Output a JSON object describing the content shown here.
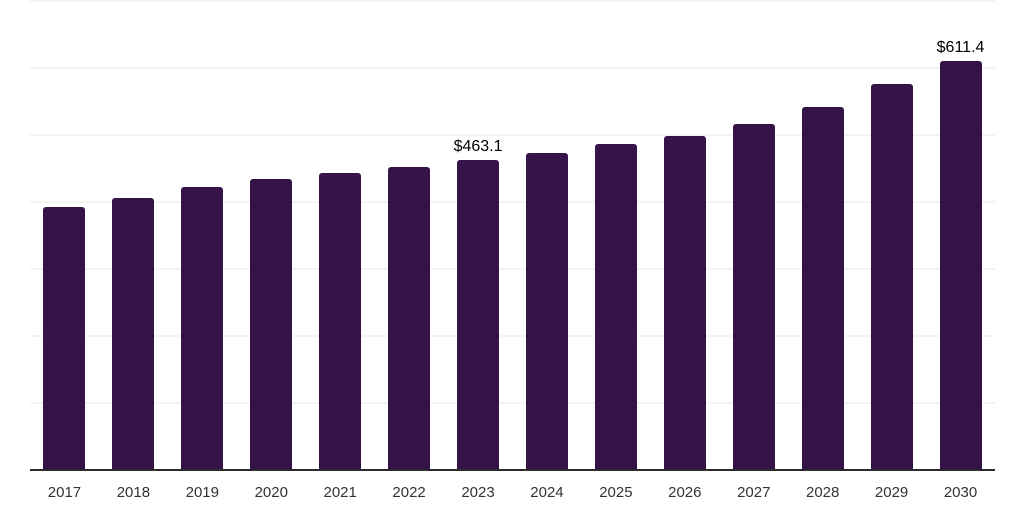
{
  "chart_data": {
    "type": "bar",
    "title": "",
    "categories": [
      "2017",
      "2018",
      "2019",
      "2020",
      "2021",
      "2022",
      "2023",
      "2024",
      "2025",
      "2026",
      "2027",
      "2028",
      "2029",
      "2030"
    ],
    "values": [
      393,
      406,
      423,
      435,
      443,
      453,
      463.1,
      474,
      487,
      499,
      517,
      542,
      577,
      611.4
    ],
    "data_labels": [
      {
        "category": "2023",
        "text": "$463.1"
      },
      {
        "category": "2030",
        "text": "$611.4"
      }
    ],
    "xlabel": "",
    "ylabel": "",
    "ylim": [
      0,
      700
    ],
    "gridline_interval": 100,
    "grid": true,
    "legend_position": "none",
    "colors": {
      "bar": "#351349",
      "axis": "#2c2c2c",
      "gridline": "#f3f3f3",
      "tick_label": "#333333",
      "data_label": "#000000",
      "background": "#ffffff"
    }
  }
}
